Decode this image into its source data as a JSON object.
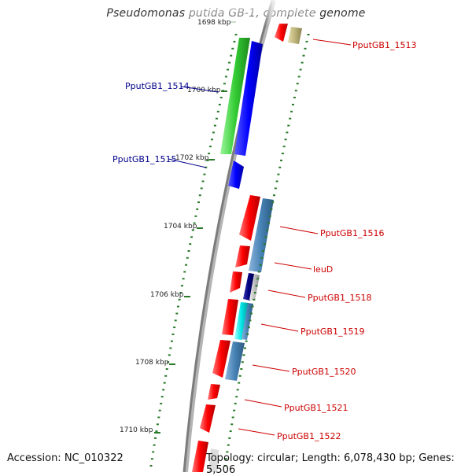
{
  "title": "Pseudomonas putida GB-1, complete genome",
  "footer": {
    "accession": "Accession: NC_010322",
    "summary": "Topology: circular; Length: 6,078,430 bp; Genes: 5,506"
  },
  "colors": {
    "forward_label": "#00008b",
    "reverse_label": "#cc0000",
    "tick": "#2a7a2a",
    "backbone": "#8a8a8a"
  },
  "ticks": [
    {
      "label": "1698 kbp"
    },
    {
      "label": "1700 kbp"
    },
    {
      "label": "1702 kbp"
    },
    {
      "label": "1704 kbp"
    },
    {
      "label": "1706 kbp"
    },
    {
      "label": "1708 kbp"
    },
    {
      "label": "1710 kbp"
    }
  ],
  "gene_labels": [
    {
      "text": "PputGB1_1513",
      "strand": "reverse"
    },
    {
      "text": "PputGB1_1514",
      "strand": "forward"
    },
    {
      "text": "PputGB1_1515",
      "strand": "forward"
    },
    {
      "text": "PputGB1_1516",
      "strand": "reverse"
    },
    {
      "text": "leuD",
      "strand": "reverse"
    },
    {
      "text": "PputGB1_1518",
      "strand": "reverse"
    },
    {
      "text": "PputGB1_1519",
      "strand": "reverse"
    },
    {
      "text": "PputGB1_1520",
      "strand": "reverse"
    },
    {
      "text": "PputGB1_1521",
      "strand": "reverse"
    },
    {
      "text": "PputGB1_1522",
      "strand": "reverse"
    }
  ]
}
